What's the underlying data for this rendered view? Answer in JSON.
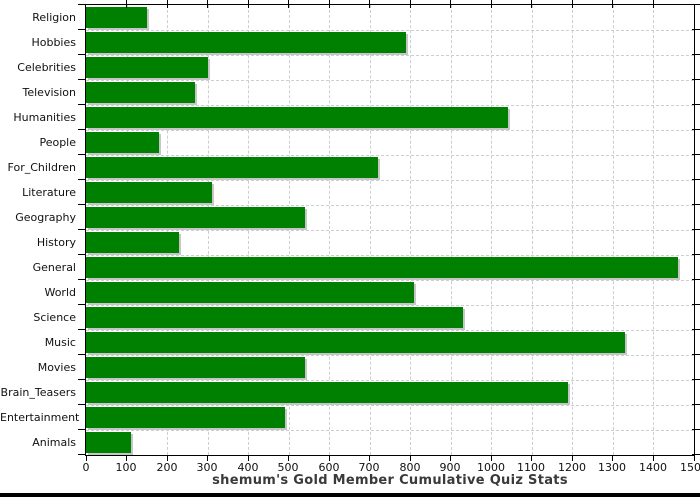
{
  "chart_data": {
    "type": "bar",
    "orientation": "horizontal",
    "title": "shemum's Gold Member Cumulative Quiz Stats",
    "categories": [
      "Religion",
      "Hobbies",
      "Celebrities",
      "Television",
      "Humanities",
      "People",
      "For_Children",
      "Literature",
      "Geography",
      "History",
      "General",
      "World",
      "Science",
      "Music",
      "Movies",
      "Brain_Teasers",
      "Entertainment",
      "Animals"
    ],
    "values": [
      150,
      790,
      300,
      270,
      1040,
      180,
      720,
      310,
      540,
      230,
      1460,
      810,
      930,
      1330,
      540,
      1190,
      490,
      110
    ],
    "xlabel": "",
    "ylabel": "",
    "xlim": [
      0,
      1500
    ],
    "x_tick_step": 100,
    "x_tick_labels": [
      "0",
      "100",
      "200",
      "300",
      "400",
      "500",
      "600",
      "700",
      "800",
      "900",
      "1000",
      "1100",
      "1200",
      "1300",
      "1400",
      "1500"
    ],
    "grid": "dashed-both-axes",
    "legend": "none",
    "colors": {
      "bar": "#008000",
      "bar_shadow": "#c6c6c6",
      "grid": "#c9cfd3",
      "axis": "#000000",
      "title": "#3a3a3a",
      "label": "#111111",
      "background": "#ffffff"
    }
  }
}
